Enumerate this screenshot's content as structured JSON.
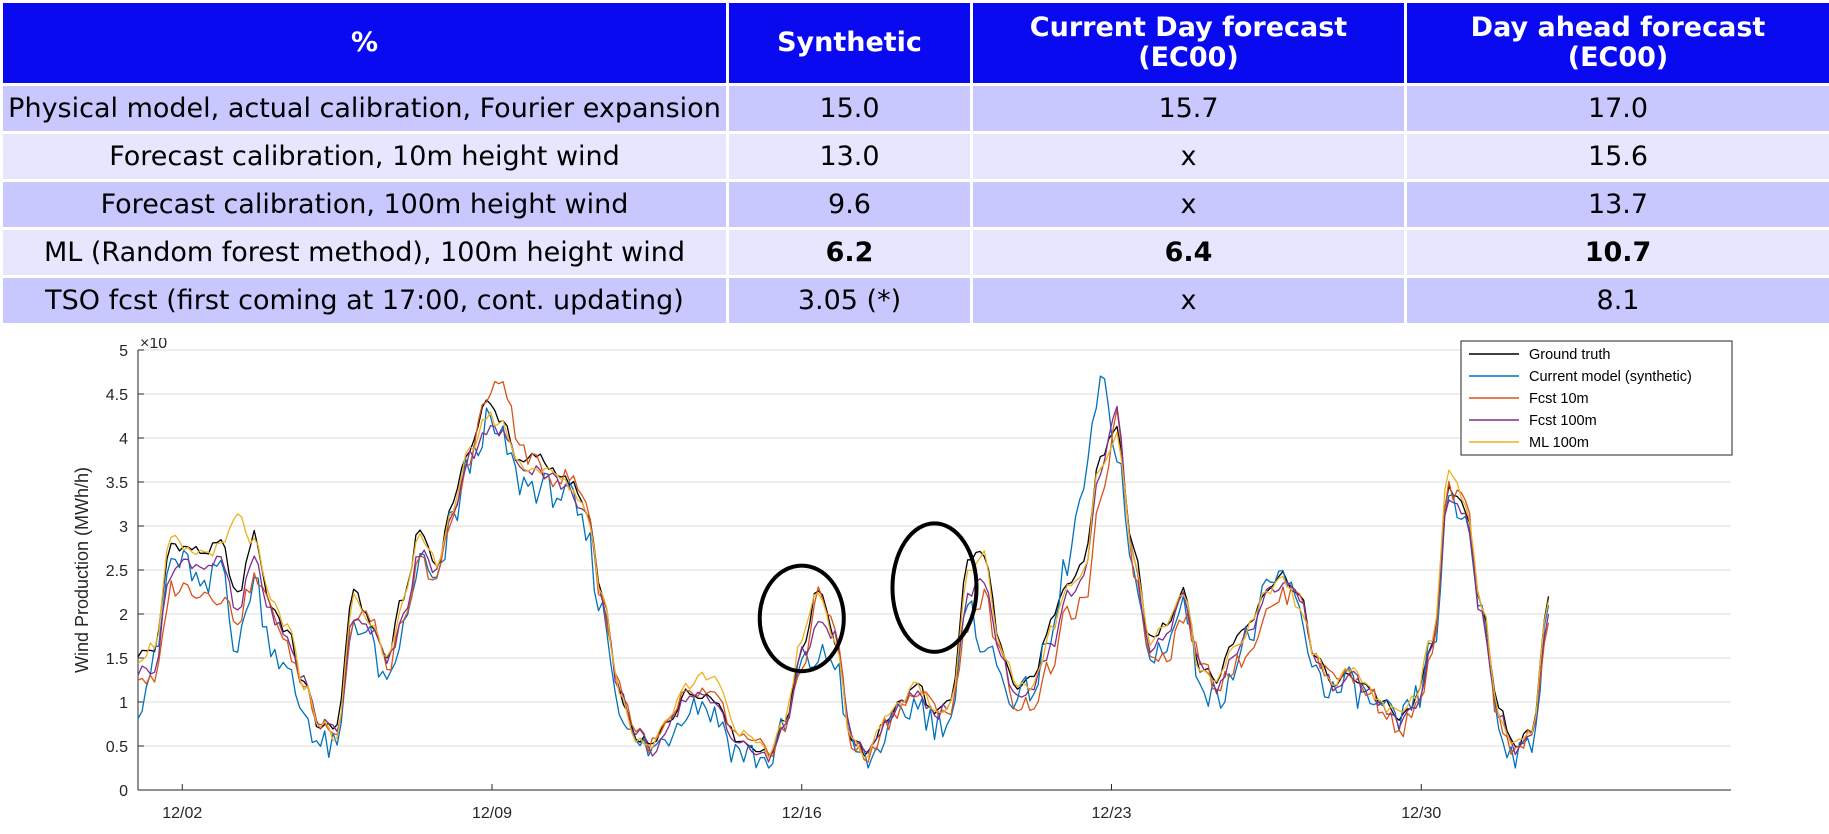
{
  "table": {
    "headers": [
      "%",
      "Synthetic",
      "Current Day forecast (EC00)",
      "Day ahead forecast (EC00)"
    ],
    "header_lines": [
      [
        "%"
      ],
      [
        "Synthetic"
      ],
      [
        "Current Day forecast",
        "(EC00)"
      ],
      [
        "Day ahead forecast",
        "(EC00)"
      ]
    ],
    "rows": [
      {
        "label": "Physical model, actual calibration, Fourier expansion",
        "values": [
          "15.0",
          "15.7",
          "17.0"
        ],
        "bold": false
      },
      {
        "label": "Forecast calibration, 10m height wind",
        "values": [
          "13.0",
          "x",
          "15.6"
        ],
        "bold": false
      },
      {
        "label": "Forecast calibration, 100m height wind",
        "values": [
          "9.6",
          "x",
          "13.7"
        ],
        "bold": false
      },
      {
        "label": "ML (Random forest method), 100m height wind",
        "values": [
          "6.2",
          "6.4",
          "10.7"
        ],
        "bold": true
      },
      {
        "label": "TSO fcst (first coming at 17:00, cont. updating)",
        "values": [
          "3.05 (*)",
          "x",
          "8.1"
        ],
        "bold": false
      }
    ],
    "colors": {
      "header_bg": "#0a0af0",
      "row_odd": "#c8c8ff",
      "row_even": "#e6e6ff"
    }
  },
  "chart_data": {
    "type": "line",
    "ylabel": "Wind Production (MWh/h)",
    "y_exponent": "×10",
    "ylim": [
      0,
      5
    ],
    "yticks": [
      "0",
      "0.5",
      "1",
      "1.5",
      "2",
      "2.5",
      "3",
      "3.5",
      "4",
      "4.5",
      "5"
    ],
    "xlim": [
      "12/01",
      "01/06"
    ],
    "xticks": [
      "12/02",
      "12/09",
      "12/16",
      "12/23",
      "12/30"
    ],
    "grid": "horizontal",
    "legend_position": "top-right",
    "series": [
      {
        "name": "Ground truth",
        "color": "#000000",
        "x_start_day": 0,
        "values": [
          1.55,
          1.6,
          2.8,
          2.75,
          2.7,
          2.8,
          2.2,
          2.9,
          2.1,
          1.8,
          1.2,
          0.7,
          0.75,
          2.3,
          1.9,
          1.5,
          2.2,
          2.95,
          2.55,
          3.3,
          3.9,
          4.4,
          4.2,
          3.7,
          3.8,
          3.65,
          3.5,
          3.2,
          2.2,
          1.1,
          0.6,
          0.5,
          0.8,
          1.1,
          1.1,
          1.0,
          0.6,
          0.5,
          0.4,
          0.8,
          1.6,
          2.3,
          1.7,
          0.6,
          0.4,
          0.8,
          1.0,
          1.2,
          0.85,
          1.0,
          2.6,
          2.7,
          1.6,
          1.2,
          1.3,
          1.9,
          2.3,
          2.6,
          3.8,
          4.1,
          2.7,
          1.7,
          1.9,
          2.3,
          1.4,
          1.25,
          1.7,
          1.9,
          2.3,
          2.45,
          2.2,
          1.5,
          1.2,
          1.3,
          1.2,
          1.0,
          0.8,
          1.0,
          1.7,
          3.4,
          3.2,
          2.1,
          0.9,
          0.5,
          0.7,
          2.2
        ]
      },
      {
        "name": "Current model (synthetic)",
        "color": "#0072bd",
        "x_start_day": 0,
        "values": [
          1.0,
          1.45,
          2.6,
          2.55,
          2.2,
          2.6,
          1.6,
          2.4,
          1.7,
          1.3,
          0.9,
          0.5,
          0.45,
          1.95,
          1.7,
          1.1,
          1.8,
          2.6,
          2.3,
          3.1,
          3.7,
          4.15,
          3.95,
          3.5,
          3.45,
          3.4,
          3.3,
          2.9,
          2.0,
          1.0,
          0.5,
          0.45,
          0.65,
          0.95,
          1.0,
          0.8,
          0.45,
          0.4,
          0.3,
          0.7,
          1.4,
          1.5,
          1.5,
          0.5,
          0.3,
          0.6,
          0.85,
          1.0,
          0.75,
          0.85,
          2.0,
          1.7,
          1.3,
          1.0,
          1.2,
          1.7,
          2.6,
          3.4,
          4.6,
          3.9,
          2.4,
          1.5,
          1.7,
          2.1,
          1.3,
          1.0,
          1.4,
          1.75,
          2.2,
          2.45,
          2.0,
          1.35,
          1.1,
          1.2,
          1.05,
          0.85,
          0.75,
          1.0,
          1.6,
          3.2,
          3.1,
          2.0,
          0.8,
          0.3,
          0.55,
          2.1
        ]
      },
      {
        "name": "Fcst 10m",
        "color": "#d95319",
        "x_start_day": 0,
        "values": [
          1.3,
          1.2,
          2.3,
          2.3,
          2.25,
          2.2,
          1.95,
          2.4,
          2.1,
          1.6,
          1.2,
          0.8,
          0.65,
          1.9,
          2.0,
          1.4,
          1.85,
          2.6,
          2.4,
          3.1,
          3.8,
          4.45,
          4.65,
          3.9,
          3.7,
          3.55,
          3.55,
          3.3,
          2.1,
          1.2,
          0.7,
          0.5,
          0.75,
          1.05,
          1.1,
          1.0,
          0.6,
          0.5,
          0.45,
          0.7,
          1.4,
          2.2,
          1.9,
          0.5,
          0.35,
          0.75,
          0.95,
          1.1,
          0.95,
          0.9,
          1.9,
          2.2,
          1.5,
          0.95,
          1.0,
          1.4,
          2.0,
          2.1,
          3.2,
          4.3,
          2.5,
          1.6,
          1.5,
          2.0,
          1.5,
          1.2,
          1.4,
          1.6,
          2.0,
          2.2,
          2.3,
          1.45,
          1.35,
          1.3,
          1.15,
          0.95,
          0.65,
          0.9,
          1.5,
          3.4,
          3.25,
          2.0,
          0.8,
          0.45,
          0.6,
          1.9
        ]
      },
      {
        "name": "Fcst 100m",
        "color": "#7e2f8e",
        "x_start_day": 0,
        "values": [
          1.35,
          1.4,
          2.5,
          2.6,
          2.55,
          2.6,
          2.0,
          2.65,
          2.0,
          1.7,
          1.25,
          0.75,
          0.7,
          2.0,
          1.85,
          1.45,
          1.95,
          2.7,
          2.5,
          3.2,
          3.8,
          4.1,
          4.05,
          3.7,
          3.65,
          3.55,
          3.4,
          3.15,
          2.1,
          1.15,
          0.65,
          0.45,
          0.75,
          1.05,
          1.05,
          0.95,
          0.55,
          0.45,
          0.35,
          0.75,
          1.55,
          1.85,
          1.75,
          0.6,
          0.4,
          0.75,
          0.95,
          1.15,
          0.85,
          0.95,
          2.2,
          2.4,
          1.5,
          1.05,
          1.2,
          1.6,
          2.2,
          2.4,
          3.6,
          4.3,
          2.6,
          1.6,
          1.8,
          2.2,
          1.4,
          1.15,
          1.55,
          1.8,
          2.25,
          2.35,
          2.2,
          1.45,
          1.2,
          1.3,
          1.15,
          0.95,
          0.75,
          0.95,
          1.6,
          3.3,
          3.15,
          1.95,
          0.85,
          0.45,
          0.65,
          2.0
        ]
      },
      {
        "name": "ML 100m",
        "color": "#edb120",
        "x_start_day": 0,
        "values": [
          1.5,
          1.65,
          2.85,
          2.7,
          2.7,
          2.75,
          3.1,
          2.8,
          2.15,
          1.85,
          1.2,
          0.75,
          0.6,
          2.2,
          1.9,
          1.55,
          2.15,
          2.85,
          2.6,
          3.2,
          3.85,
          4.25,
          4.15,
          3.7,
          3.65,
          3.6,
          3.45,
          3.2,
          2.2,
          1.15,
          0.6,
          0.5,
          0.85,
          1.2,
          1.3,
          1.25,
          0.7,
          0.55,
          0.4,
          0.85,
          1.7,
          2.3,
          1.7,
          0.55,
          0.4,
          0.85,
          1.0,
          1.2,
          0.9,
          1.0,
          2.45,
          2.65,
          1.6,
          1.15,
          1.2,
          1.8,
          2.3,
          2.5,
          3.7,
          4.0,
          2.65,
          1.7,
          1.85,
          2.25,
          1.35,
          1.2,
          1.6,
          1.85,
          2.25,
          2.4,
          2.1,
          1.5,
          1.25,
          1.35,
          1.2,
          0.95,
          0.85,
          1.05,
          1.75,
          3.65,
          3.3,
          2.1,
          0.85,
          0.5,
          0.7,
          2.15
        ]
      }
    ],
    "annotations": [
      {
        "shape": "ellipse",
        "x_date": "12/16",
        "y": 1.95,
        "rx_days": 0.95,
        "ry": 0.6
      },
      {
        "shape": "ellipse",
        "x_date": "12/19",
        "y": 2.3,
        "rx_days": 0.95,
        "ry": 0.73
      }
    ]
  }
}
